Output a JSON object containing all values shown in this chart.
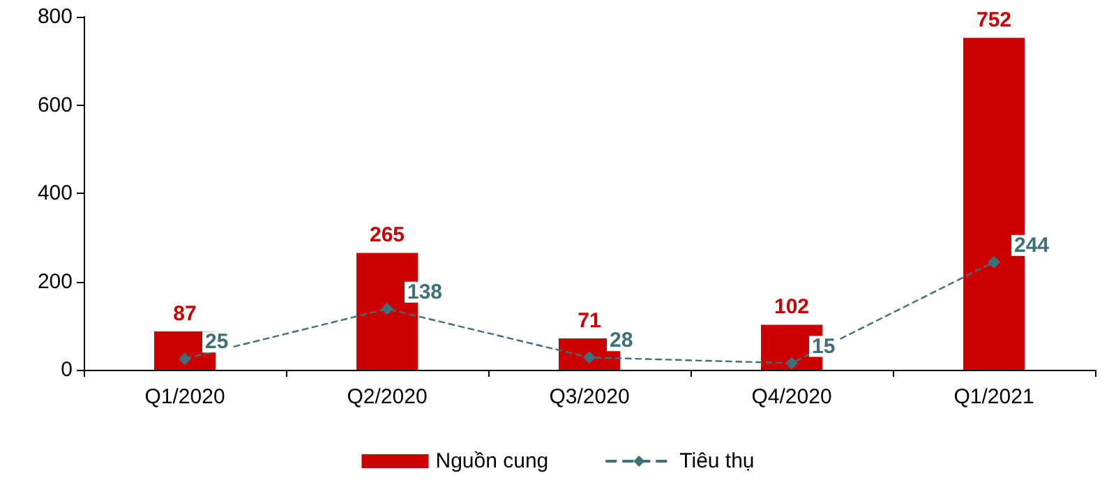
{
  "chart_data": {
    "type": "bar",
    "categories": [
      "Q1/2020",
      "Q2/2020",
      "Q3/2020",
      "Q4/2020",
      "Q1/2021"
    ],
    "series": [
      {
        "name": "Nguồn cung",
        "color": "#cc0000",
        "values": [
          87,
          265,
          71,
          102,
          752
        ]
      },
      {
        "name": "Tiêu thụ",
        "type": "line",
        "color": "#3f6f78",
        "values": [
          25,
          138,
          28,
          15,
          244
        ],
        "marker": "diamond",
        "line_style": "dashed"
      }
    ],
    "ylim": [
      0,
      800
    ],
    "yticks": [
      0,
      200,
      400,
      600,
      800
    ],
    "grid": false,
    "legend": "bottom",
    "data_labels": true
  }
}
